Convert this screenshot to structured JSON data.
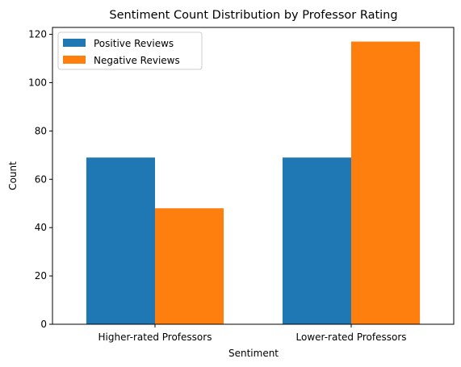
{
  "chart_data": {
    "type": "bar",
    "title": "Sentiment Count Distribution by Professor Rating",
    "xlabel": "Sentiment",
    "ylabel": "Count",
    "categories": [
      "Higher-rated Professors",
      "Lower-rated Professors"
    ],
    "series": [
      {
        "name": "Positive Reviews",
        "values": [
          69,
          69
        ],
        "color": "#1f77b4"
      },
      {
        "name": "Negative Reviews",
        "values": [
          48,
          117
        ],
        "color": "#ff7f0e"
      }
    ],
    "ylim": [
      0,
      122.85
    ],
    "yticks": [
      0,
      20,
      40,
      60,
      80,
      100,
      120
    ],
    "grid": false,
    "legend_position": "top-left"
  }
}
